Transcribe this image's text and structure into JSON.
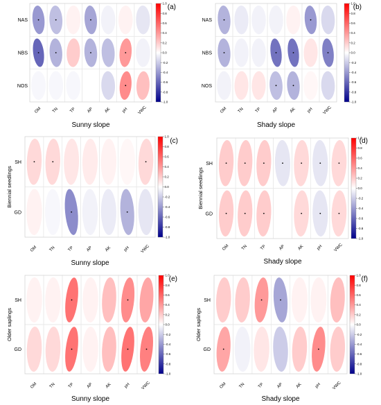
{
  "colorbar": {
    "ticks": [
      "1.0",
      "0.8",
      "0.6",
      "0.4",
      "0.2",
      "0.0",
      "-0.2",
      "-0.4",
      "-0.6",
      "-0.8",
      "-1.0"
    ],
    "colors": {
      "positive": "#ff0000",
      "neutral": "#ffffff",
      "negative": "#00008b"
    }
  },
  "chart_data": [
    {
      "type": "heatmap",
      "panel_label": "(a)",
      "xlabel": "Sunny slope",
      "ylabel": "",
      "columns": [
        "OM",
        "TN",
        "TP",
        "AP",
        "AK",
        "pH",
        "VWC"
      ],
      "rows": [
        "NAS",
        "NBS",
        "NOS"
      ],
      "range": [
        -1,
        1
      ],
      "values": [
        [
          -0.4,
          -0.25,
          0.05,
          -0.35,
          -0.05,
          0.05,
          -0.1
        ],
        [
          -0.6,
          -0.3,
          0.2,
          -0.3,
          -0.25,
          0.4,
          -0.05
        ],
        [
          -0.03,
          -0.03,
          -0.03,
          0.0,
          -0.15,
          0.45,
          0.25
        ]
      ],
      "significant": [
        [
          true,
          true,
          false,
          true,
          false,
          false,
          false
        ],
        [
          true,
          true,
          false,
          true,
          false,
          true,
          false
        ],
        [
          false,
          false,
          false,
          false,
          false,
          true,
          false
        ]
      ]
    },
    {
      "type": "heatmap",
      "panel_label": "(b)",
      "xlabel": "Shady slope",
      "ylabel": "",
      "columns": [
        "OM",
        "TN",
        "TP",
        "AP",
        "AK",
        "pH",
        "VWC"
      ],
      "rows": [
        "NAS",
        "NBS",
        "NOS"
      ],
      "range": [
        -1,
        1
      ],
      "values": [
        [
          -0.3,
          -0.08,
          -0.05,
          -0.05,
          0.05,
          -0.4,
          -0.15
        ],
        [
          -0.3,
          -0.05,
          -0.05,
          -0.55,
          -0.55,
          0.1,
          -0.5
        ],
        [
          -0.05,
          0.1,
          0.1,
          -0.25,
          -0.3,
          0.03,
          -0.15
        ]
      ],
      "significant": [
        [
          true,
          false,
          false,
          false,
          false,
          true,
          false
        ],
        [
          true,
          false,
          false,
          true,
          true,
          false,
          true
        ],
        [
          false,
          false,
          false,
          true,
          true,
          false,
          false
        ]
      ]
    },
    {
      "type": "heatmap",
      "panel_label": "(c)",
      "xlabel": "Sunny slope",
      "ylabel": "Biennial seedlings",
      "columns": [
        "OM",
        "TN",
        "TP",
        "AP",
        "AK",
        "pH",
        "VWC"
      ],
      "rows": [
        "SH",
        "GD"
      ],
      "range": [
        -1,
        1
      ],
      "values": [
        [
          0.15,
          0.15,
          0.1,
          0.08,
          0.05,
          0.03,
          0.15
        ],
        [
          0.05,
          -0.03,
          -0.45,
          -0.05,
          -0.08,
          -0.3,
          -0.1
        ]
      ],
      "significant": [
        [
          true,
          true,
          false,
          false,
          false,
          false,
          true
        ],
        [
          false,
          false,
          true,
          false,
          false,
          true,
          false
        ]
      ]
    },
    {
      "type": "heatmap",
      "panel_label": "(d)",
      "xlabel": "Shady slope",
      "ylabel": "Biennial seedlings",
      "columns": [
        "OM",
        "TN",
        "TP",
        "AP",
        "AK",
        "pH",
        "VWC"
      ],
      "rows": [
        "SH",
        "GD"
      ],
      "range": [
        -1,
        1
      ],
      "values": [
        [
          0.2,
          0.2,
          0.2,
          -0.1,
          0.15,
          -0.1,
          0.15
        ],
        [
          0.2,
          0.2,
          0.2,
          0.0,
          0.15,
          -0.1,
          0.15
        ]
      ],
      "significant": [
        [
          true,
          true,
          true,
          true,
          true,
          true,
          true
        ],
        [
          true,
          true,
          true,
          false,
          true,
          true,
          true
        ]
      ]
    },
    {
      "type": "heatmap",
      "panel_label": "(e)",
      "xlabel": "Sunny slope",
      "ylabel": "Older saplings",
      "columns": [
        "OM",
        "TN",
        "TP",
        "AP",
        "AK",
        "pH",
        "VWC"
      ],
      "rows": [
        "SH",
        "GD"
      ],
      "range": [
        -1,
        1
      ],
      "values": [
        [
          0.05,
          0.05,
          0.55,
          0.05,
          0.25,
          0.45,
          0.35
        ],
        [
          0.15,
          0.15,
          0.55,
          0.05,
          0.25,
          0.55,
          0.5
        ]
      ],
      "significant": [
        [
          false,
          false,
          true,
          false,
          false,
          true,
          false
        ],
        [
          false,
          false,
          true,
          false,
          false,
          true,
          true
        ]
      ]
    },
    {
      "type": "heatmap",
      "panel_label": "(f)",
      "xlabel": "Shady slope",
      "ylabel": "Older saplings",
      "columns": [
        "OM",
        "TN",
        "TP",
        "AP",
        "AK",
        "pH",
        "VWC"
      ],
      "rows": [
        "SH",
        "GD"
      ],
      "range": [
        -1,
        1
      ],
      "values": [
        [
          0.2,
          0.2,
          0.4,
          -0.35,
          0.05,
          0.05,
          0.25
        ],
        [
          0.35,
          -0.05,
          0.1,
          -0.2,
          0.2,
          0.45,
          0.2
        ]
      ],
      "significant": [
        [
          false,
          false,
          true,
          true,
          false,
          false,
          false
        ],
        [
          true,
          false,
          false,
          false,
          false,
          true,
          false
        ]
      ]
    }
  ]
}
